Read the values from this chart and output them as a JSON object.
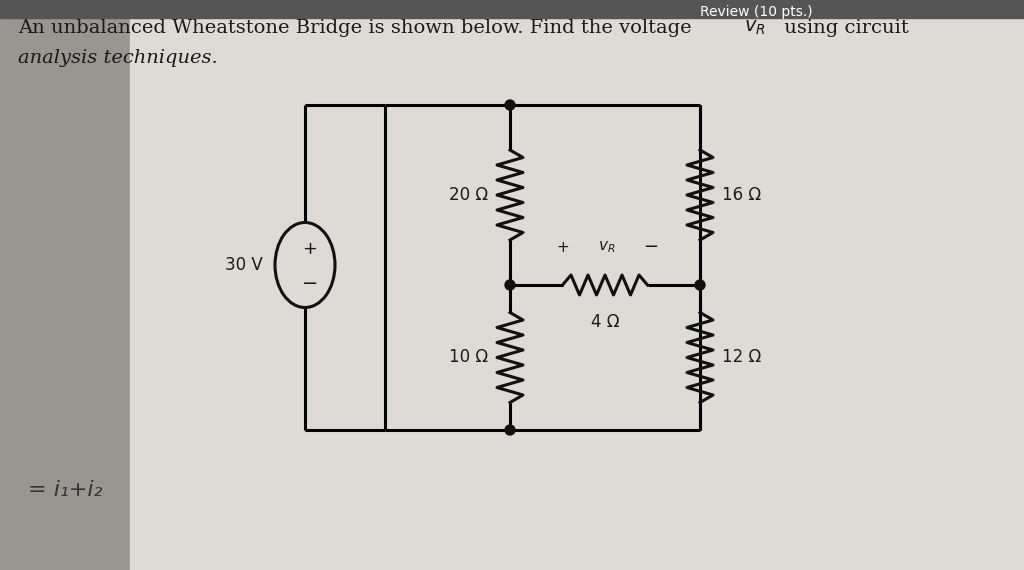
{
  "bg_top_color": "#b8b8b8",
  "bg_bottom_color": "#cccccc",
  "paper_color": "#e8e6e2",
  "circuit_box_color": "#f2f0ec",
  "title_line1": "An unbalanced Wheatstone Bridge is shown below. Find the voltage υ",
  "title_sub": "R",
  "title_end": " using circuit",
  "title_line2": "analysis techniques.",
  "annotation": "= i₁+i₂",
  "source_voltage": "30 V",
  "r1": "20 Ω",
  "r2": "10 Ω",
  "r3": "16 Ω",
  "r4": "12 Ω",
  "r_bridge": "4 Ω",
  "text_color": "#1a1a1a",
  "circuit_color": "#111111",
  "line_width": 2.2,
  "font_size_title": 14,
  "font_size_labels": 12
}
